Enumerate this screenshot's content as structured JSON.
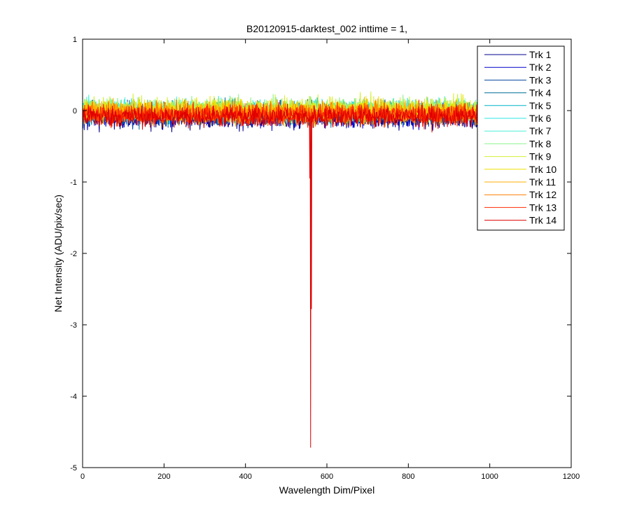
{
  "chart_data": {
    "type": "line",
    "title": "B20120915-darktest_002 inttime = 1,",
    "xlabel": "Wavelength Dim/Pixel",
    "ylabel": "Net Intensity (ADU/pix/sec)",
    "xlim": [
      0,
      1200
    ],
    "ylim": [
      -5,
      1
    ],
    "xticks": [
      0,
      200,
      400,
      600,
      800,
      1000,
      1200
    ],
    "yticks": [
      -5,
      -4,
      -3,
      -2,
      -1,
      0,
      1
    ],
    "x_range": [
      1,
      975
    ],
    "grid": false,
    "legend_position": "top-right",
    "series": [
      {
        "name": "Trk 1",
        "color": "#00008f",
        "mean": -0.1,
        "spread": 0.28,
        "spikes": []
      },
      {
        "name": "Trk 2",
        "color": "#0000cc",
        "mean": -0.08,
        "spread": 0.28,
        "spikes": []
      },
      {
        "name": "Trk 3",
        "color": "#0046a0",
        "mean": -0.06,
        "spread": 0.27,
        "spikes": []
      },
      {
        "name": "Trk 4",
        "color": "#00719a",
        "mean": -0.04,
        "spread": 0.27,
        "spikes": []
      },
      {
        "name": "Trk 5",
        "color": "#00b4c8",
        "mean": -0.02,
        "spread": 0.27,
        "spikes": []
      },
      {
        "name": "Trk 6",
        "color": "#2ee6e6",
        "mean": 0.0,
        "spread": 0.27,
        "spikes": []
      },
      {
        "name": "Trk 7",
        "color": "#4ef0d8",
        "mean": 0.02,
        "spread": 0.27,
        "spikes": []
      },
      {
        "name": "Trk 8",
        "color": "#8ef28e",
        "mean": 0.02,
        "spread": 0.27,
        "spikes": []
      },
      {
        "name": "Trk 9",
        "color": "#d2f032",
        "mean": 0.02,
        "spread": 0.3,
        "spikes": []
      },
      {
        "name": "Trk 10",
        "color": "#f0e000",
        "mean": 0.0,
        "spread": 0.3,
        "spikes": []
      },
      {
        "name": "Trk 11",
        "color": "#ffb000",
        "mean": -0.02,
        "spread": 0.28,
        "spikes": []
      },
      {
        "name": "Trk 12",
        "color": "#ff7a00",
        "mean": -0.04,
        "spread": 0.28,
        "spikes": []
      },
      {
        "name": "Trk 13",
        "color": "#ff2a00",
        "mean": -0.06,
        "spread": 0.27,
        "spikes": []
      },
      {
        "name": "Trk 14",
        "color": "#e00000",
        "mean": -0.08,
        "spread": 0.27,
        "spikes": [
          {
            "x": 558,
            "y": -0.95
          },
          {
            "x": 560,
            "y": -4.72
          },
          {
            "x": 562,
            "y": -2.78
          }
        ]
      }
    ]
  }
}
